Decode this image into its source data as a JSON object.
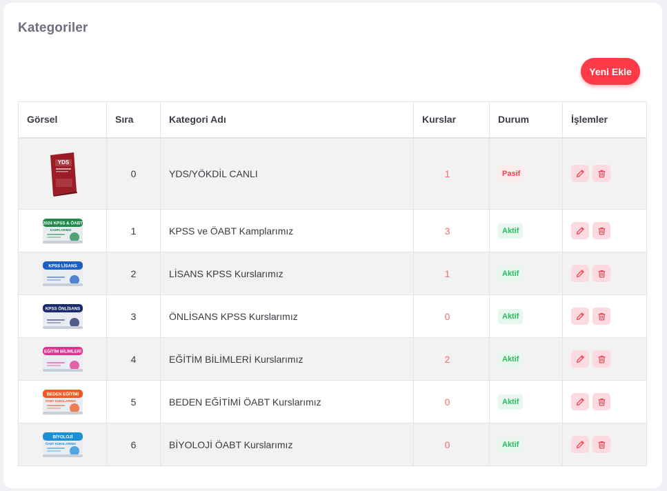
{
  "page": {
    "title": "Kategoriler",
    "add_button": "Yeni Ekle"
  },
  "table": {
    "headers": [
      "Görsel",
      "Sıra",
      "Kategori Adı",
      "Kurslar",
      "Durum",
      "İşlemler"
    ],
    "rows": [
      {
        "order": "0",
        "name": "YDS/YÖKDİL CANLI",
        "courses": "1",
        "status": "Pasif",
        "thumb": {
          "kind": "book",
          "label": "YDS",
          "color": "#9c1c26"
        }
      },
      {
        "order": "1",
        "name": "KPSS ve ÖABT Kamplarımız",
        "courses": "3",
        "status": "Aktif",
        "thumb": {
          "kind": "banner",
          "label": "2024 KPSS & ÖABT",
          "sub": "KAMPLARIMIZ",
          "color": "#1e8a4c"
        }
      },
      {
        "order": "2",
        "name": "LİSANS KPSS Kurslarımız",
        "courses": "1",
        "status": "Aktif",
        "thumb": {
          "kind": "banner",
          "label": "KPSS LİSANS",
          "sub": "",
          "color": "#1f5fc4"
        }
      },
      {
        "order": "3",
        "name": "ÖNLİSANS KPSS Kurslarımız",
        "courses": "0",
        "status": "Aktif",
        "thumb": {
          "kind": "banner",
          "label": "KPSS ÖNLİSANS",
          "sub": "",
          "color": "#1a2a6e"
        }
      },
      {
        "order": "4",
        "name": "EĞİTİM BİLİMLERİ Kurslarımız",
        "courses": "2",
        "status": "Aktif",
        "thumb": {
          "kind": "banner",
          "label": "EĞİTİM BİLİMLERİ",
          "sub": "",
          "color": "#e0318f"
        }
      },
      {
        "order": "5",
        "name": "BEDEN EĞİTİMİ ÖABT Kurslarımız",
        "courses": "0",
        "status": "Aktif",
        "thumb": {
          "kind": "banner",
          "label": "BEDEN EĞİTİMİ",
          "sub": "ÖABT KURSLARIMIZ",
          "color": "#ee5a1f"
        }
      },
      {
        "order": "6",
        "name": "BİYOLOJİ ÖABT Kurslarımız",
        "courses": "0",
        "status": "Aktif",
        "thumb": {
          "kind": "banner",
          "label": "BİYOLOJİ",
          "sub": "ÖABT KURSLARIMIZ",
          "color": "#1c8fd6"
        }
      }
    ]
  },
  "colors": {
    "accent": "#fd3a48",
    "active_text": "#2bb75e",
    "active_bg": "#e6f8ee",
    "passive_text": "#f0404f",
    "passive_bg": "#fdecee",
    "courses_text": "#f36b72",
    "icon_red": "#ef4555"
  },
  "icons": {
    "edit": "pencil-icon",
    "delete": "trash-icon"
  }
}
